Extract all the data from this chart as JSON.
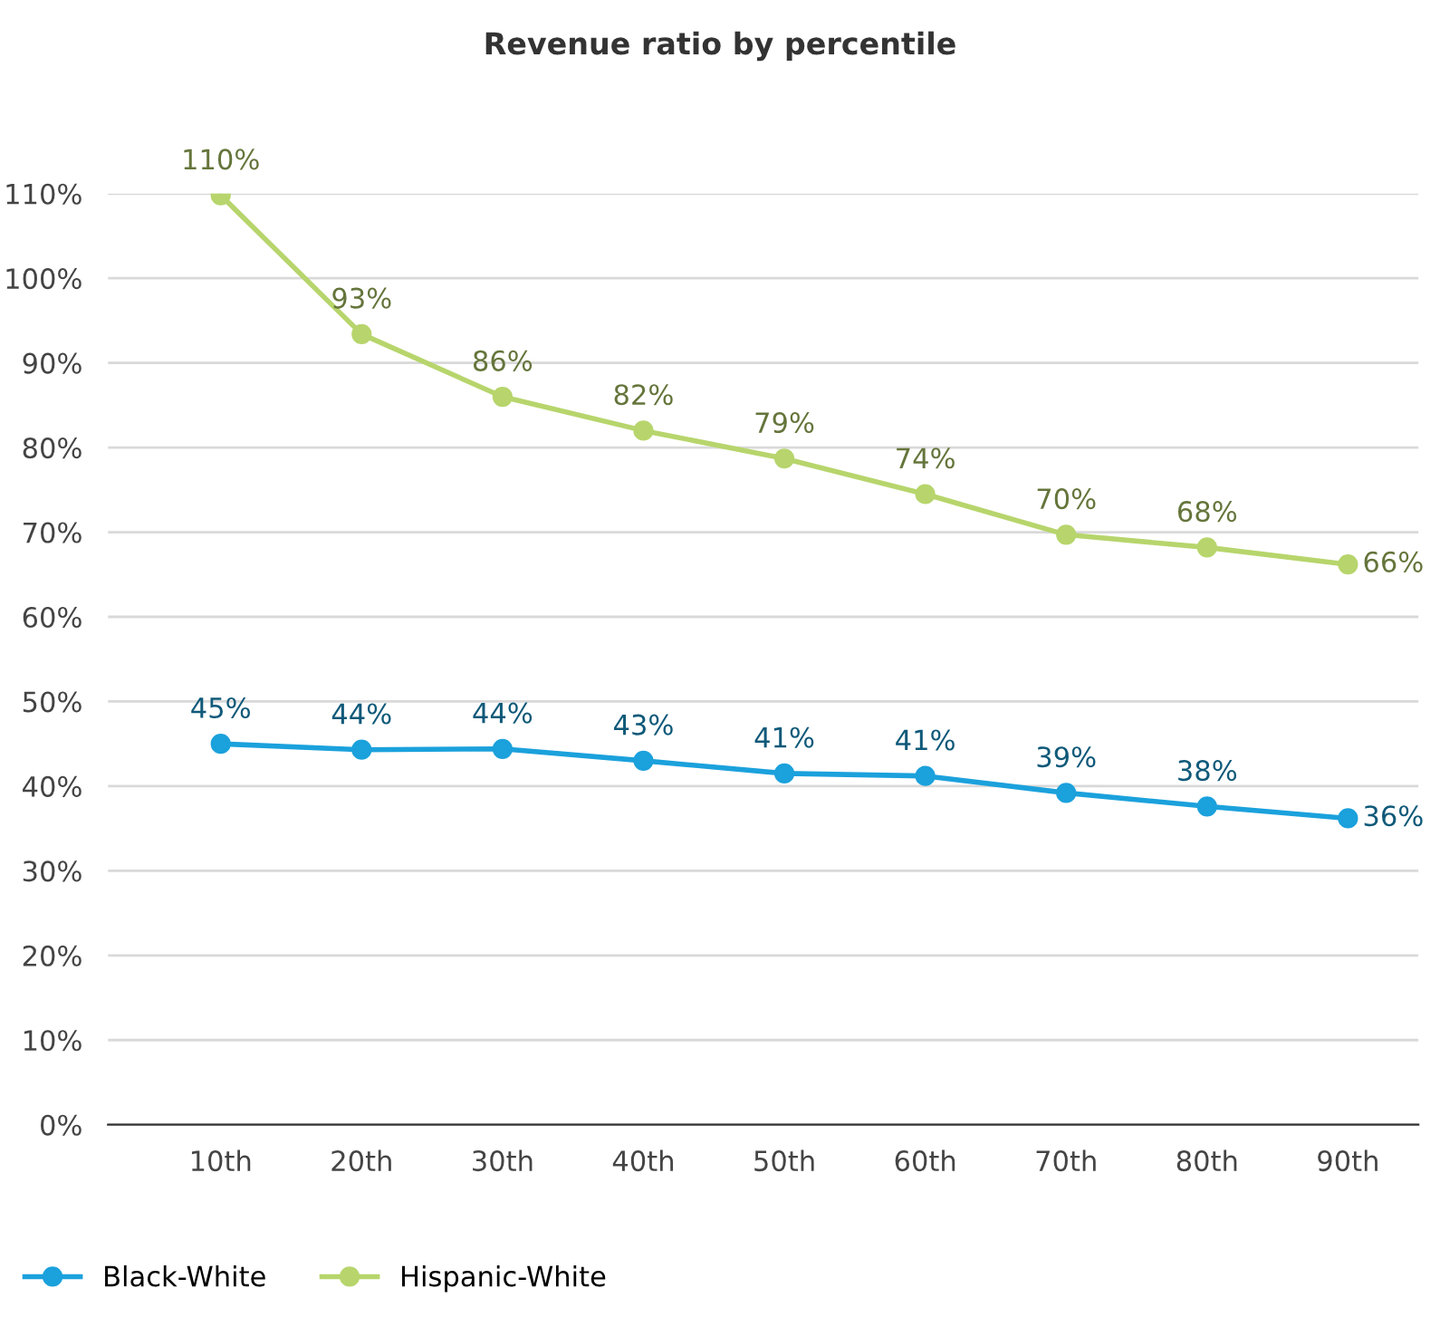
{
  "chart_data": {
    "type": "line",
    "title": "Revenue ratio by percentile",
    "categories": [
      "10th",
      "20th",
      "30th",
      "40th",
      "50th",
      "60th",
      "70th",
      "80th",
      "90th"
    ],
    "series": [
      {
        "name": "Black-White",
        "color": "#1ba1dc",
        "values": [
          45,
          44.3,
          44.4,
          43,
          41.5,
          41.2,
          39.2,
          37.6,
          36.2
        ],
        "value_labels": [
          "45%",
          "44%",
          "44%",
          "43%",
          "41%",
          "41%",
          "39%",
          "38%",
          "36%"
        ]
      },
      {
        "name": "Hispanic-White",
        "color": "#b7d56c",
        "values": [
          109.8,
          93.4,
          86,
          82,
          78.7,
          74.5,
          69.7,
          68.2,
          66.2
        ],
        "value_labels": [
          "110%",
          "93%",
          "86%",
          "82%",
          "79%",
          "74%",
          "70%",
          "68%",
          "66%"
        ]
      }
    ],
    "ylim": [
      0,
      110
    ],
    "yticks": [
      {
        "value": 0,
        "label": "0%"
      },
      {
        "value": 10,
        "label": "10%"
      },
      {
        "value": 20,
        "label": "20%"
      },
      {
        "value": 30,
        "label": "30%"
      },
      {
        "value": 40,
        "label": "40%"
      },
      {
        "value": 50,
        "label": "50%"
      },
      {
        "value": 60,
        "label": "60%"
      },
      {
        "value": 70,
        "label": "70%"
      },
      {
        "value": 80,
        "label": "80%"
      },
      {
        "value": 90,
        "label": "90%"
      },
      {
        "value": 100,
        "label": "100%"
      },
      {
        "value": 110,
        "label": "110%"
      }
    ],
    "grid": "y",
    "legend": "bottom left",
    "marker": "circle",
    "line_style": "solid"
  }
}
